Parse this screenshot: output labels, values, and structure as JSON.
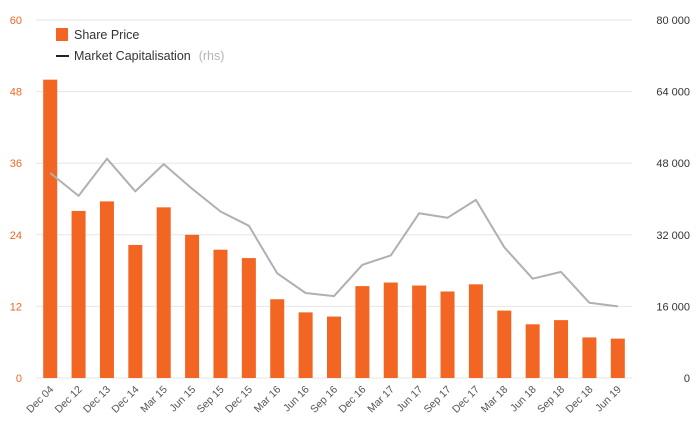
{
  "chart_data": {
    "type": "bar",
    "categories": [
      "Dec 04",
      "Dec 12",
      "Dec 13",
      "Dec 14",
      "Mar 15",
      "Jun 15",
      "Sep 15",
      "Dec 15",
      "Mar 16",
      "Jun 16",
      "Sep 16",
      "Dec 16",
      "Mar 17",
      "Jun 17",
      "Sep 17",
      "Dec 17",
      "Mar 18",
      "Jun 18",
      "Sep 18",
      "Dec 18",
      "Jun 19"
    ],
    "series": [
      {
        "name": "Share Price",
        "type": "bar",
        "axis": "left",
        "color": "#f26522",
        "values": [
          50.0,
          28.0,
          29.6,
          22.3,
          28.6,
          24.0,
          21.5,
          20.1,
          13.2,
          11.0,
          10.3,
          15.4,
          16.0,
          15.5,
          14.5,
          15.7,
          11.3,
          9.0,
          9.7,
          6.8,
          6.6
        ]
      },
      {
        "name": "Market Capitalisation",
        "type": "line",
        "axis": "right",
        "color": "#b0b0b0",
        "values": [
          45800,
          40700,
          49000,
          41700,
          47800,
          42300,
          37200,
          34000,
          23400,
          19000,
          18300,
          25300,
          27400,
          36800,
          35800,
          39800,
          29200,
          22200,
          23700,
          16800,
          16000
        ]
      }
    ],
    "title": "",
    "xlabel": "",
    "ylabel": "",
    "ylim": [
      0,
      60
    ],
    "y2lim": [
      0,
      80000
    ],
    "yticks": [
      "0",
      "12",
      "24",
      "36",
      "48",
      "60"
    ],
    "y2ticks": [
      "0",
      "16 000",
      "32 000",
      "48 000",
      "64 000",
      "80 000"
    ],
    "grid": "horizontal",
    "legend": {
      "position": "top-left",
      "items": [
        {
          "label": "Share Price",
          "note": "",
          "marker": "square",
          "color": "#f26522"
        },
        {
          "label": "Market Capitalisation",
          "note": "(rhs)",
          "marker": "line",
          "color": "#222222"
        }
      ]
    }
  }
}
